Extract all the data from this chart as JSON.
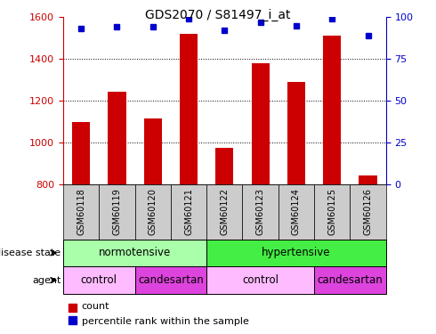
{
  "title": "GDS2070 / S81497_i_at",
  "samples": [
    "GSM60118",
    "GSM60119",
    "GSM60120",
    "GSM60121",
    "GSM60122",
    "GSM60123",
    "GSM60124",
    "GSM60125",
    "GSM60126"
  ],
  "counts": [
    1095,
    1240,
    1115,
    1520,
    975,
    1380,
    1290,
    1510,
    840
  ],
  "percentiles": [
    93,
    94,
    94,
    99,
    92,
    97,
    95,
    99,
    89
  ],
  "ylim_left": [
    800,
    1600
  ],
  "ylim_right": [
    0,
    100
  ],
  "yticks_left": [
    800,
    1000,
    1200,
    1400,
    1600
  ],
  "yticks_right": [
    0,
    25,
    50,
    75,
    100
  ],
  "grid_values": [
    1000,
    1200,
    1400
  ],
  "colors": {
    "bar": "#cc0000",
    "percentile_marker": "#0000cc",
    "normotensive_bg": "#aaffaa",
    "hypertensive_bg": "#44ee44",
    "control_bg": "#ffbbff",
    "candesartan_bg": "#dd44dd",
    "sample_bg": "#cccccc",
    "left_axis_color": "#cc0000",
    "right_axis_color": "#0000cc"
  },
  "legend": {
    "count_label": "count",
    "percentile_label": "percentile rank within the sample"
  },
  "annotation_rows": [
    {
      "label": "disease state",
      "items": [
        {
          "text": "normotensive",
          "start": 0,
          "end": 3,
          "color": "normotensive_bg"
        },
        {
          "text": "hypertensive",
          "start": 4,
          "end": 8,
          "color": "hypertensive_bg"
        }
      ]
    },
    {
      "label": "agent",
      "items": [
        {
          "text": "control",
          "start": 0,
          "end": 1,
          "color": "control_bg"
        },
        {
          "text": "candesartan",
          "start": 2,
          "end": 3,
          "color": "candesartan_bg"
        },
        {
          "text": "control",
          "start": 4,
          "end": 6,
          "color": "control_bg"
        },
        {
          "text": "candesartan",
          "start": 7,
          "end": 8,
          "color": "candesartan_bg"
        }
      ]
    }
  ]
}
